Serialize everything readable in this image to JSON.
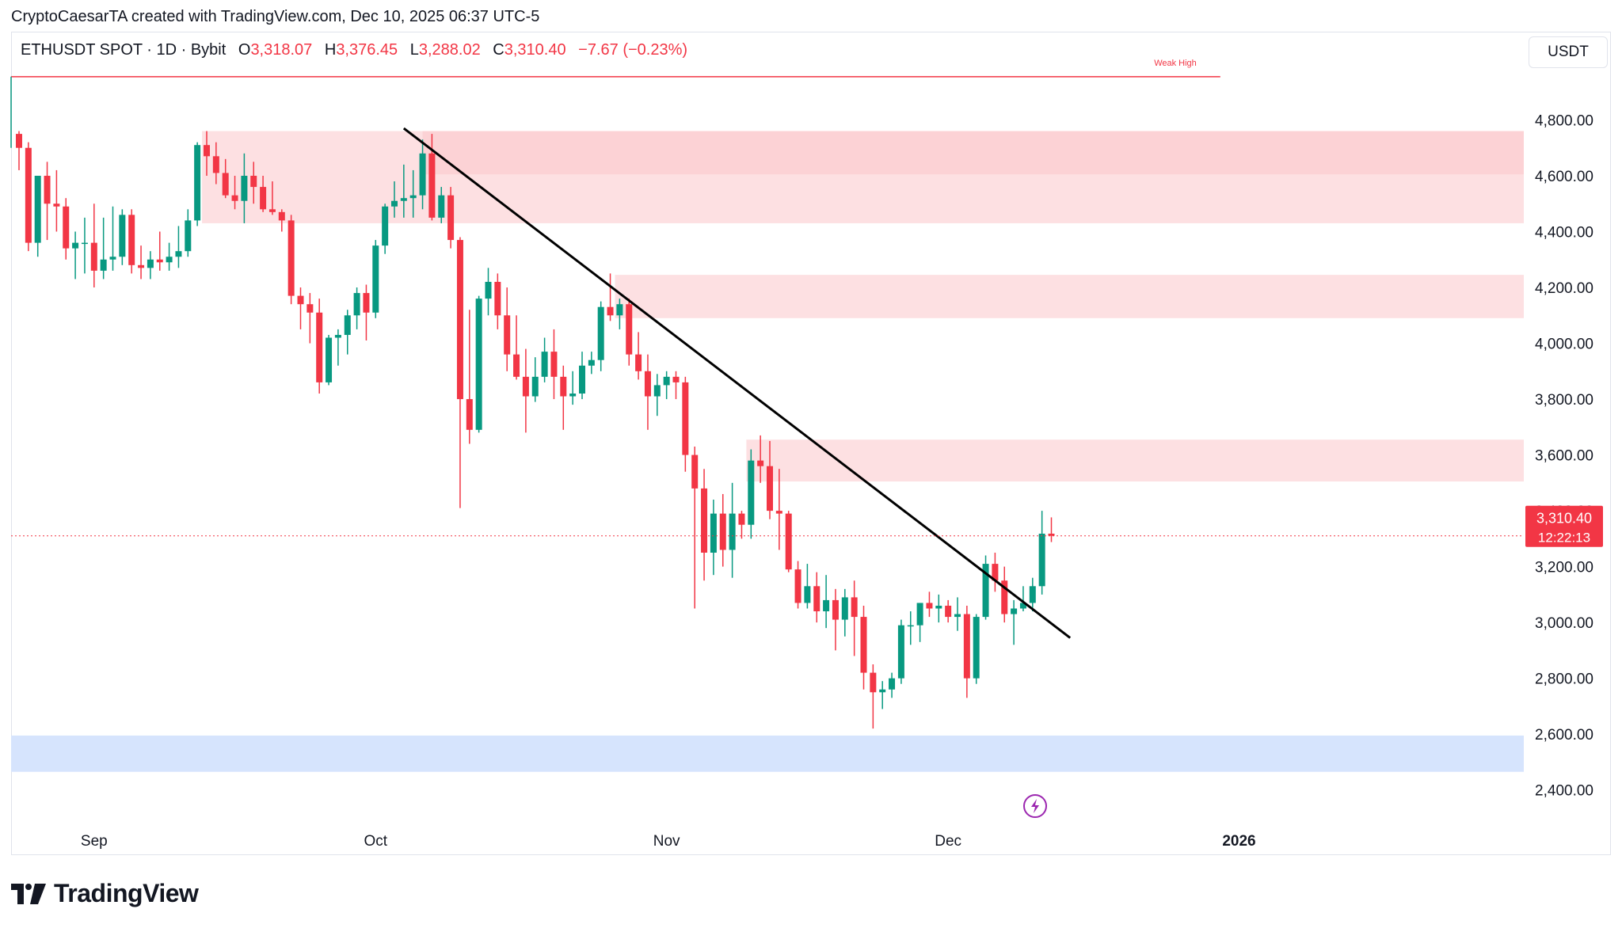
{
  "header": {
    "attribution": "CryptoCaesarTA created with TradingView.com, Dec 10, 2025 06:37 UTC-5"
  },
  "legend": {
    "symbol": "ETHUSDT SPOT · 1D · Bybit",
    "open_label": "O",
    "open": "3,318.07",
    "high_label": "H",
    "high": "3,376.45",
    "low_label": "L",
    "low": "3,288.02",
    "close_label": "C",
    "close": "3,310.40",
    "change": "−7.67 (−0.23%)"
  },
  "currency_button": "USDT",
  "footer": {
    "brand": "TradingView"
  },
  "colors": {
    "up": "#089981",
    "down": "#f23645",
    "zone": "#fde0e2",
    "zone_dark": "#fcd2d5",
    "support": "#d6e4fd",
    "axis_text": "#131722"
  },
  "chart_data": {
    "type": "candlestick",
    "title": "ETHUSDT SPOT · 1D · Bybit",
    "ylabel": "USDT",
    "ylim": [
      2280,
      4980
    ],
    "y_ticks": [
      "4,800.00",
      "4,600.00",
      "4,400.00",
      "4,200.00",
      "4,000.00",
      "3,800.00",
      "3,600.00",
      "3,400.00",
      "3,200.00",
      "3,000.00",
      "2,800.00",
      "2,600.00",
      "2,400.00"
    ],
    "x_labels": [
      {
        "label": "Sep",
        "day": 8
      },
      {
        "label": "Oct",
        "day": 38
      },
      {
        "label": "Nov",
        "day": 69
      },
      {
        "label": "Dec",
        "day": 99
      },
      {
        "label": "2026",
        "day": 130
      }
    ],
    "current_price": {
      "price": 3310.4,
      "label": "3,310.40",
      "countdown": "12:22:13"
    },
    "weak_high": {
      "price": 4955,
      "label": "Weak High",
      "day_start": 0,
      "day_end": 128
    },
    "zones": [
      {
        "name": "supply-zone-top",
        "from_day": 20,
        "low": 4430,
        "high": 4760
      },
      {
        "name": "supply-zone-mid",
        "from_day": 64,
        "low": 4090,
        "high": 4245
      },
      {
        "name": "supply-zone-low",
        "from_day": 78,
        "low": 3505,
        "high": 3655
      },
      {
        "name": "support-zone",
        "from_day": 0,
        "low": 2465,
        "high": 2595
      }
    ],
    "trendline": {
      "start": {
        "day": 41,
        "price": 4770
      },
      "end": {
        "day": 112,
        "price": 2945
      }
    },
    "candles": [
      [
        0,
        4750,
        4760,
        4620,
        4700
      ],
      [
        1,
        4700,
        4720,
        4330,
        4360
      ],
      [
        2,
        4360,
        4600,
        4310,
        4600
      ],
      [
        3,
        4600,
        4650,
        4370,
        4500
      ],
      [
        4,
        4500,
        4620,
        4400,
        4490
      ],
      [
        5,
        4490,
        4520,
        4300,
        4340
      ],
      [
        6,
        4340,
        4400,
        4230,
        4360
      ],
      [
        7,
        4360,
        4450,
        4250,
        4360
      ],
      [
        8,
        4360,
        4500,
        4200,
        4260
      ],
      [
        9,
        4260,
        4450,
        4230,
        4300
      ],
      [
        10,
        4300,
        4490,
        4260,
        4310
      ],
      [
        11,
        4310,
        4480,
        4280,
        4460
      ],
      [
        12,
        4460,
        4480,
        4250,
        4280
      ],
      [
        13,
        4280,
        4350,
        4230,
        4270
      ],
      [
        14,
        4270,
        4330,
        4230,
        4300
      ],
      [
        15,
        4300,
        4400,
        4260,
        4290
      ],
      [
        16,
        4290,
        4360,
        4260,
        4310
      ],
      [
        17,
        4310,
        4420,
        4270,
        4330
      ],
      [
        18,
        4330,
        4480,
        4310,
        4440
      ],
      [
        19,
        4440,
        4720,
        4420,
        4710
      ],
      [
        20,
        4710,
        4760,
        4600,
        4670
      ],
      [
        21,
        4670,
        4720,
        4570,
        4610
      ],
      [
        22,
        4610,
        4660,
        4520,
        4530
      ],
      [
        23,
        4530,
        4600,
        4480,
        4510
      ],
      [
        24,
        4510,
        4680,
        4430,
        4600
      ],
      [
        25,
        4600,
        4650,
        4500,
        4560
      ],
      [
        26,
        4560,
        4600,
        4470,
        4480
      ],
      [
        27,
        4480,
        4580,
        4460,
        4470
      ],
      [
        28,
        4470,
        4480,
        4400,
        4440
      ],
      [
        29,
        4440,
        4460,
        4140,
        4170
      ],
      [
        30,
        4170,
        4200,
        4050,
        4140
      ],
      [
        31,
        4140,
        4180,
        4000,
        4110
      ],
      [
        32,
        4110,
        4160,
        3820,
        3860
      ],
      [
        33,
        3860,
        4030,
        3850,
        4020
      ],
      [
        34,
        4020,
        4050,
        3920,
        4030
      ],
      [
        35,
        4030,
        4120,
        3960,
        4100
      ],
      [
        36,
        4100,
        4200,
        4050,
        4180
      ],
      [
        37,
        4180,
        4210,
        4010,
        4110
      ],
      [
        38,
        4110,
        4370,
        4090,
        4350
      ],
      [
        39,
        4350,
        4500,
        4320,
        4490
      ],
      [
        40,
        4490,
        4580,
        4450,
        4510
      ],
      [
        41,
        4510,
        4640,
        4450,
        4520
      ],
      [
        42,
        4520,
        4620,
        4450,
        4530
      ],
      [
        43,
        4530,
        4730,
        4480,
        4680
      ],
      [
        44,
        4680,
        4750,
        4440,
        4450
      ],
      [
        45,
        4450,
        4560,
        4430,
        4530
      ],
      [
        46,
        4530,
        4560,
        4340,
        4370
      ],
      [
        47,
        4370,
        4380,
        3410,
        3800
      ],
      [
        48,
        3800,
        4120,
        3640,
        3690
      ],
      [
        49,
        3690,
        4170,
        3680,
        4160
      ],
      [
        50,
        4160,
        4270,
        4100,
        4220
      ],
      [
        51,
        4220,
        4250,
        4050,
        4100
      ],
      [
        52,
        4100,
        4200,
        3900,
        3960
      ],
      [
        53,
        3960,
        4100,
        3870,
        3880
      ],
      [
        54,
        3880,
        3980,
        3680,
        3810
      ],
      [
        55,
        3810,
        3950,
        3790,
        3880
      ],
      [
        56,
        3880,
        4020,
        3860,
        3970
      ],
      [
        57,
        3970,
        4050,
        3800,
        3880
      ],
      [
        58,
        3880,
        3920,
        3690,
        3810
      ],
      [
        59,
        3810,
        3900,
        3780,
        3820
      ],
      [
        60,
        3820,
        3970,
        3800,
        3920
      ],
      [
        61,
        3920,
        3970,
        3890,
        3940
      ],
      [
        62,
        3940,
        4150,
        3900,
        4130
      ],
      [
        63,
        4130,
        4250,
        4080,
        4100
      ],
      [
        64,
        4100,
        4160,
        4050,
        4140
      ],
      [
        65,
        4140,
        4160,
        3920,
        3960
      ],
      [
        66,
        3960,
        4040,
        3870,
        3900
      ],
      [
        67,
        3900,
        3960,
        3690,
        3810
      ],
      [
        68,
        3810,
        3890,
        3740,
        3850
      ],
      [
        69,
        3850,
        3900,
        3800,
        3880
      ],
      [
        70,
        3880,
        3900,
        3800,
        3860
      ],
      [
        71,
        3860,
        3880,
        3540,
        3600
      ],
      [
        72,
        3600,
        3630,
        3050,
        3480
      ],
      [
        73,
        3480,
        3550,
        3150,
        3250
      ],
      [
        74,
        3250,
        3440,
        3170,
        3390
      ],
      [
        75,
        3390,
        3460,
        3200,
        3260
      ],
      [
        76,
        3260,
        3500,
        3160,
        3390
      ],
      [
        77,
        3390,
        3400,
        3300,
        3350
      ],
      [
        78,
        3350,
        3620,
        3300,
        3580
      ],
      [
        79,
        3580,
        3670,
        3500,
        3560
      ],
      [
        80,
        3560,
        3650,
        3370,
        3400
      ],
      [
        81,
        3400,
        3550,
        3260,
        3390
      ],
      [
        82,
        3390,
        3400,
        3180,
        3190
      ],
      [
        83,
        3190,
        3220,
        3050,
        3070
      ],
      [
        84,
        3070,
        3210,
        3050,
        3130
      ],
      [
        85,
        3130,
        3180,
        3000,
        3040
      ],
      [
        86,
        3040,
        3170,
        2980,
        3080
      ],
      [
        87,
        3080,
        3120,
        2900,
        3010
      ],
      [
        88,
        3010,
        3120,
        2950,
        3090
      ],
      [
        89,
        3090,
        3150,
        2880,
        3020
      ],
      [
        90,
        3020,
        3060,
        2760,
        2820
      ],
      [
        91,
        2820,
        2850,
        2620,
        2750
      ],
      [
        92,
        2750,
        2790,
        2690,
        2760
      ],
      [
        93,
        2760,
        2820,
        2730,
        2800
      ],
      [
        94,
        2800,
        3010,
        2780,
        2990
      ],
      [
        95,
        2990,
        3040,
        2920,
        2990
      ],
      [
        96,
        2990,
        3070,
        2930,
        3070
      ],
      [
        97,
        3070,
        3110,
        3020,
        3050
      ],
      [
        98,
        3050,
        3100,
        3000,
        3060
      ],
      [
        99,
        3060,
        3080,
        3000,
        3020
      ],
      [
        100,
        3020,
        3090,
        2970,
        3030
      ],
      [
        101,
        3030,
        3060,
        2730,
        2800
      ],
      [
        102,
        2800,
        3030,
        2780,
        3020
      ],
      [
        103,
        3020,
        3240,
        3010,
        3210
      ],
      [
        104,
        3210,
        3250,
        3110,
        3150
      ],
      [
        105,
        3150,
        3200,
        3000,
        3030
      ],
      [
        106,
        3030,
        3080,
        2920,
        3050
      ],
      [
        107,
        3050,
        3130,
        3040,
        3070
      ],
      [
        108,
        3070,
        3160,
        3040,
        3130
      ],
      [
        109,
        3130,
        3400,
        3100,
        3318
      ],
      [
        110,
        3318.07,
        3376.45,
        3288.02,
        3310.4
      ]
    ]
  }
}
